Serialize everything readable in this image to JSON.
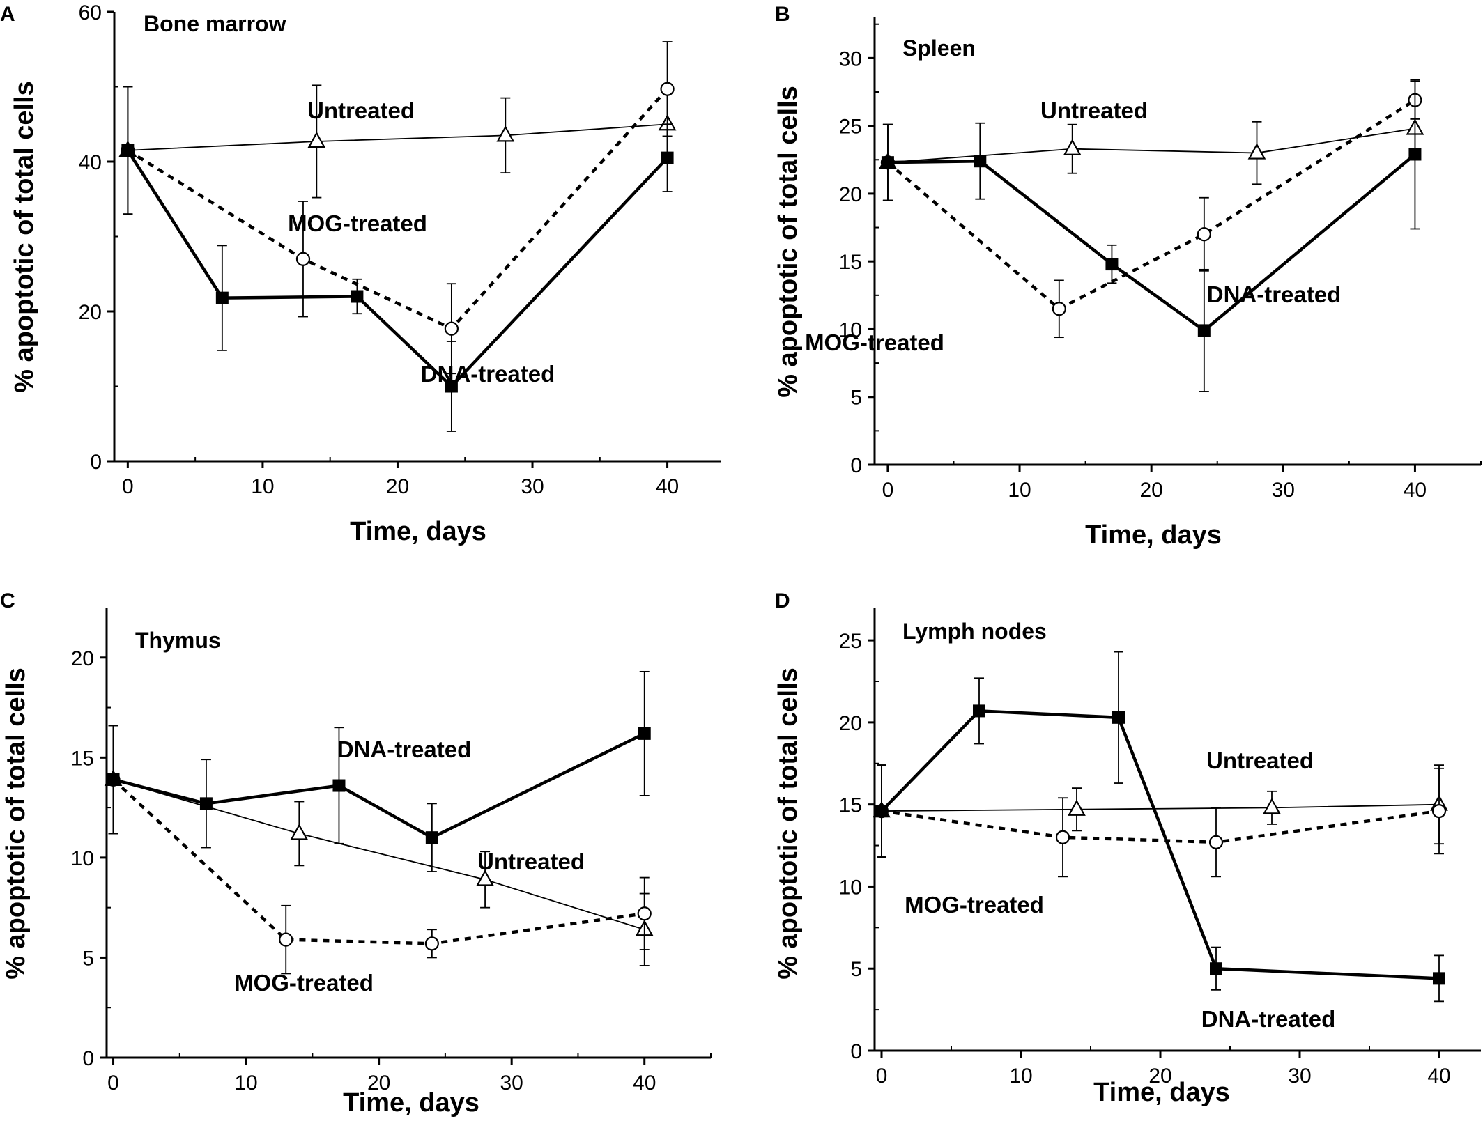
{
  "figure": {
    "panels": [
      {
        "letter": "A",
        "title": "Bone marrow"
      },
      {
        "letter": "B",
        "title": "Spleen"
      },
      {
        "letter": "C",
        "title": "Thymus"
      },
      {
        "letter": "D",
        "title": "Lymph nodes"
      }
    ]
  },
  "chart_data": [
    {
      "type": "line",
      "panel": "A",
      "title": "Bone marrow",
      "xlabel": "Time, days",
      "ylabel": "% apoptotic of total cells",
      "xlim": [
        -1,
        44
      ],
      "ylim": [
        0,
        60
      ],
      "xticks": [
        0,
        10,
        20,
        30,
        40
      ],
      "yticks": [
        0,
        20,
        40,
        60
      ],
      "series": [
        {
          "name": "Untreated",
          "style": "thin-solid",
          "marker": "open-triangle",
          "x": [
            0,
            14,
            28,
            40
          ],
          "y": [
            41.5,
            42.7,
            43.5,
            45.0
          ],
          "err": [
            8.5,
            7.5,
            5.0,
            4.5
          ]
        },
        {
          "name": "MOG-treated",
          "style": "dashed",
          "marker": "open-circle",
          "x": [
            0,
            13,
            24,
            40
          ],
          "y": [
            41.5,
            27.0,
            17.7,
            49.7
          ],
          "err": [
            8.5,
            7.7,
            6.0,
            6.3
          ]
        },
        {
          "name": "DNA-treated",
          "style": "thick-solid",
          "marker": "filled-square",
          "x": [
            0,
            7,
            17,
            24,
            40
          ],
          "y": [
            41.5,
            21.8,
            22.0,
            10.0,
            40.5
          ],
          "err": [
            8.5,
            7.0,
            2.3,
            6.0,
            4.5
          ]
        }
      ]
    },
    {
      "type": "line",
      "panel": "B",
      "title": "Spleen",
      "xlabel": "Time, days",
      "ylabel": "% apoptotic of total cells",
      "xlim": [
        -1,
        45
      ],
      "ylim": [
        0,
        33
      ],
      "xticks": [
        0,
        10,
        20,
        30,
        40
      ],
      "yticks": [
        0,
        5,
        10,
        15,
        20,
        25,
        30
      ],
      "series": [
        {
          "name": "Untreated",
          "style": "thin-solid",
          "marker": "open-triangle",
          "x": [
            0,
            14,
            28,
            40
          ],
          "y": [
            22.3,
            23.3,
            23.0,
            24.8
          ],
          "err": [
            2.8,
            1.8,
            2.3,
            2.3
          ]
        },
        {
          "name": "MOG-treated",
          "style": "dashed",
          "marker": "open-circle",
          "x": [
            0,
            13,
            24,
            40
          ],
          "y": [
            22.3,
            11.5,
            17.0,
            26.9
          ],
          "err": [
            2.8,
            2.1,
            2.7,
            1.4
          ]
        },
        {
          "name": "DNA-treated",
          "style": "thick-solid",
          "marker": "filled-square",
          "x": [
            0,
            7,
            17,
            24,
            40
          ],
          "y": [
            22.3,
            22.4,
            14.8,
            9.9,
            22.9
          ],
          "err": [
            2.8,
            2.8,
            1.4,
            4.5,
            5.5
          ]
        }
      ]
    },
    {
      "type": "line",
      "panel": "C",
      "title": "Thymus",
      "xlabel": "Time, days",
      "ylabel": "% apoptotic of total cells",
      "xlim": [
        -0.5,
        45
      ],
      "ylim": [
        0,
        22.5
      ],
      "xticks": [
        0,
        10,
        20,
        30,
        40
      ],
      "yticks": [
        0,
        5,
        10,
        15,
        20
      ],
      "series": [
        {
          "name": "Untreated",
          "style": "thin-solid",
          "marker": "open-triangle",
          "x": [
            0,
            14,
            28,
            40
          ],
          "y": [
            13.9,
            11.2,
            8.9,
            6.4
          ],
          "err": [
            2.7,
            1.6,
            1.4,
            1.8
          ]
        },
        {
          "name": "MOG-treated",
          "style": "dashed",
          "marker": "open-circle",
          "x": [
            0,
            13,
            24,
            40
          ],
          "y": [
            13.9,
            5.9,
            5.7,
            7.2
          ],
          "err": [
            2.7,
            1.7,
            0.7,
            1.8
          ]
        },
        {
          "name": "DNA-treated",
          "style": "thick-solid",
          "marker": "filled-square",
          "x": [
            0,
            7,
            17,
            24,
            40
          ],
          "y": [
            13.9,
            12.7,
            13.6,
            11.0,
            16.2
          ],
          "err": [
            2.7,
            2.2,
            2.9,
            1.7,
            3.1
          ]
        }
      ]
    },
    {
      "type": "line",
      "panel": "D",
      "title": "Lymph nodes",
      "xlabel": "Time, days",
      "ylabel": "% apoptotic of total cells",
      "xlim": [
        -0.5,
        43
      ],
      "ylim": [
        0,
        27
      ],
      "xticks": [
        0,
        10,
        20,
        30,
        40
      ],
      "yticks": [
        0,
        5,
        10,
        15,
        20,
        25
      ],
      "series": [
        {
          "name": "Untreated",
          "style": "thin-solid",
          "marker": "open-triangle",
          "x": [
            0,
            14,
            28,
            40
          ],
          "y": [
            14.6,
            14.7,
            14.8,
            15.0
          ],
          "err": [
            2.8,
            1.3,
            1.0,
            2.4
          ]
        },
        {
          "name": "MOG-treated",
          "style": "dashed",
          "marker": "open-circle",
          "x": [
            0,
            13,
            24,
            40
          ],
          "y": [
            14.6,
            13.0,
            12.7,
            14.6
          ],
          "err": [
            2.8,
            2.4,
            2.1,
            2.6
          ]
        },
        {
          "name": "DNA-treated",
          "style": "thick-solid",
          "marker": "filled-square",
          "x": [
            0,
            7,
            17,
            24,
            40
          ],
          "y": [
            14.6,
            20.7,
            20.3,
            5.0,
            4.4
          ],
          "err": [
            2.8,
            2.0,
            4.0,
            1.3,
            1.4
          ]
        }
      ]
    }
  ]
}
